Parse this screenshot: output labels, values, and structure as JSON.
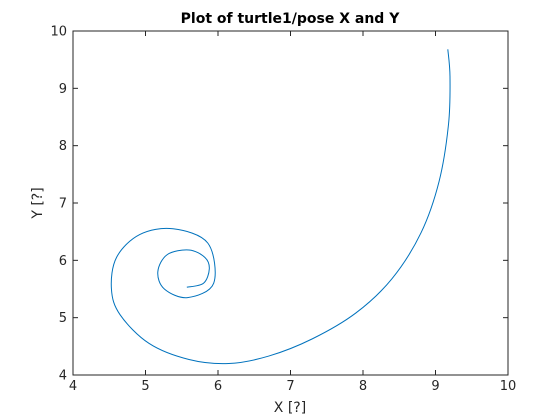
{
  "chart_data": {
    "type": "line",
    "title": "Plot of turtle1/pose X and Y",
    "xlabel": "X [?]",
    "ylabel": "Y [?]",
    "xlim": [
      4,
      10
    ],
    "ylim": [
      4,
      10
    ],
    "xticks": [
      4,
      5,
      6,
      7,
      8,
      9,
      10
    ],
    "yticks": [
      4,
      5,
      6,
      7,
      8,
      9,
      10
    ],
    "grid": false,
    "legend": "none",
    "series": [
      {
        "color": "#0072bd",
        "x": [
          5.57,
          5.8,
          5.88,
          5.82,
          5.6,
          5.3,
          5.17,
          5.26,
          5.58,
          5.94,
          5.86,
          5.38,
          4.92,
          4.6,
          4.53,
          4.65,
          5.05,
          5.6,
          6.15,
          6.7,
          7.3,
          7.9,
          8.4,
          8.8,
          9.05,
          9.18,
          9.2,
          9.17
        ],
        "y": [
          5.53,
          5.6,
          5.85,
          6.05,
          6.18,
          6.1,
          5.8,
          5.5,
          5.35,
          5.6,
          6.3,
          6.55,
          6.45,
          6.05,
          5.5,
          5.05,
          4.55,
          4.27,
          4.2,
          4.33,
          4.63,
          5.08,
          5.68,
          6.48,
          7.38,
          8.38,
          9.2,
          9.68
        ]
      }
    ]
  }
}
